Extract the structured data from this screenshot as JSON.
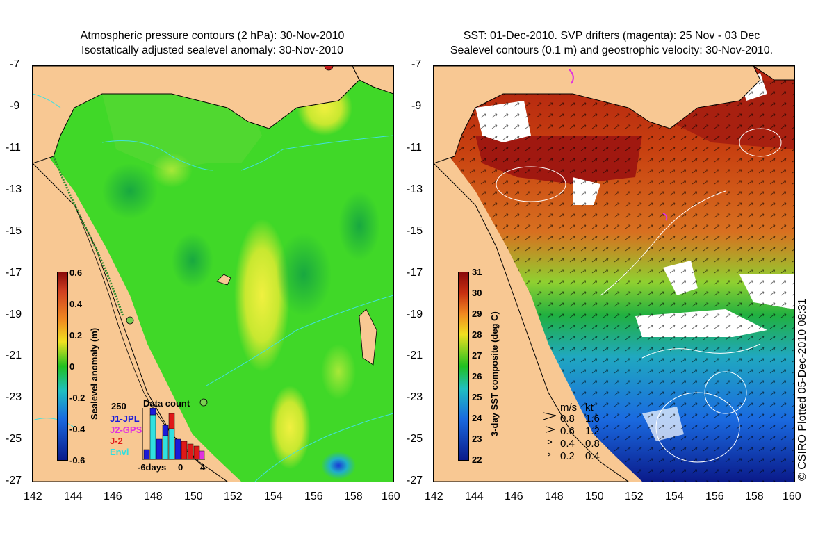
{
  "left_panel": {
    "title_line1": "Atmospheric pressure contours (2 hPa): 30-Nov-2010",
    "title_line2": "Isostatically adjusted sealevel anomaly: 30-Nov-2010",
    "colorbar": {
      "label": "Sealevel anomaly (m)",
      "ticks": [
        "0.6",
        "0.4",
        "0.2",
        "0",
        "-0.2",
        "-0.4",
        "-0.6"
      ],
      "range": [
        -0.6,
        0.6
      ]
    },
    "data_count": {
      "title": "Data count",
      "max_label": "250",
      "missions": [
        {
          "name": "J1-JPL",
          "color": "#1b1bd8"
        },
        {
          "name": "J2-GPS",
          "color": "#e030e0"
        },
        {
          "name": "J-2",
          "color": "#e01818"
        },
        {
          "name": "Envi",
          "color": "#30e0e0"
        }
      ],
      "x_labels": [
        "-6days",
        "0",
        "4"
      ]
    }
  },
  "right_panel": {
    "title_line1": "SST: 01-Dec-2010. SVP drifters (magenta): 25 Nov - 03 Dec",
    "title_line2": "Sealevel contours (0.1 m) and geostrophic velocity: 30-Nov-2010.",
    "colorbar": {
      "label": "3-day SST composite (deg C)",
      "ticks": [
        "31",
        "30",
        "29",
        "28",
        "27",
        "26",
        "25",
        "24",
        "23",
        "22"
      ],
      "range": [
        22,
        31
      ]
    },
    "velocity_legend": {
      "header_ms": "m/s",
      "header_kt": "kt",
      "rows": [
        {
          "ms": "0.8",
          "kt": "1.6"
        },
        {
          "ms": "0.6",
          "kt": "1.2"
        },
        {
          "ms": "0.4",
          "kt": "0.8"
        },
        {
          "ms": "0.2",
          "kt": "0.4"
        }
      ]
    }
  },
  "axes": {
    "lat_ticks": [
      "-7",
      "-9",
      "-11",
      "-13",
      "-15",
      "-17",
      "-19",
      "-21",
      "-23",
      "-25",
      "-27"
    ],
    "lon_ticks": [
      "142",
      "144",
      "146",
      "148",
      "150",
      "152",
      "154",
      "156",
      "158",
      "160"
    ]
  },
  "credit": "© CSIRO Plotted 05-Dec-2010 08:31",
  "colors": {
    "land": "#f8c893",
    "sla_low": "#0a1a8a",
    "sla_mid": "#20c020",
    "sla_high": "#8a0a0a",
    "sst_low": "#0a1a8a",
    "sst_high": "#8a0a0a"
  }
}
